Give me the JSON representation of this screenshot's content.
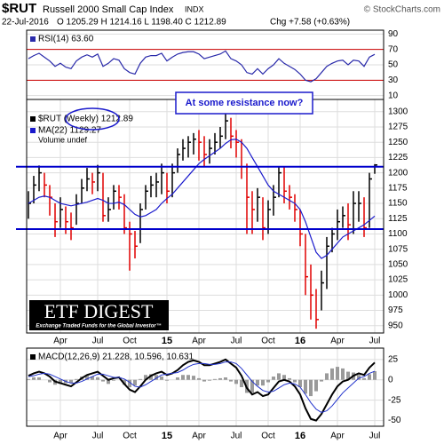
{
  "header": {
    "symbol": "$RUT",
    "name": "Russell 2000 Small Cap Index",
    "exchange": "INDX",
    "source": "© StockCharts.com",
    "date": "22-Jul-2016",
    "quote": "O 1205.29  H 1214.16  L 1198.40  C 1212.89",
    "change": "Chg +7.58 (+0.63%)"
  },
  "annotation": "At some resistance now?",
  "logo": {
    "title": "ETF DIGEST",
    "tagline": "Exchange Traded Funds for the Global Investor™"
  },
  "chart_data": [
    {
      "type": "line",
      "ylim": [
        5,
        95
      ],
      "yticks": [
        10,
        30,
        50,
        70,
        90
      ],
      "grid": true,
      "bands": [
        30,
        70
      ],
      "band_color": "#cc0000",
      "series": [
        {
          "name": "RSI(14) 63.60",
          "color": "#2a2aaa",
          "values": [
            58,
            62,
            65,
            60,
            55,
            48,
            52,
            47,
            45,
            55,
            60,
            63,
            60,
            64,
            48,
            52,
            58,
            56,
            45,
            40,
            38,
            52,
            60,
            62,
            62,
            65,
            55,
            60,
            64,
            66,
            67,
            67,
            64,
            58,
            60,
            62,
            64,
            68,
            58,
            55,
            50,
            40,
            38,
            45,
            38,
            45,
            50,
            58,
            52,
            48,
            44,
            38,
            30,
            28,
            32,
            40,
            48,
            52,
            55,
            56,
            50,
            56,
            55,
            48,
            60,
            63.6
          ]
        }
      ]
    },
    {
      "type": "ohlc",
      "ylim": [
        938,
        1320
      ],
      "yticks": [
        950,
        975,
        1000,
        1025,
        1050,
        1075,
        1100,
        1125,
        1150,
        1175,
        1200,
        1225,
        1250,
        1275,
        1300
      ],
      "grid": true,
      "volume_label": "Volume undef",
      "hlines": [
        1210,
        1108
      ],
      "hline_color": "#0000cc",
      "categories": [
        null,
        null,
        null,
        null,
        null,
        null,
        "Apr",
        null,
        null,
        null,
        null,
        null,
        null,
        "Jul",
        null,
        null,
        null,
        null,
        null,
        "Oct",
        null,
        null,
        null,
        null,
        null,
        null,
        "15",
        null,
        null,
        null,
        null,
        null,
        "Apr",
        null,
        null,
        null,
        null,
        null,
        null,
        "Jul",
        null,
        null,
        null,
        null,
        null,
        "Oct",
        null,
        null,
        null,
        null,
        null,
        "16",
        null,
        null,
        null,
        null,
        null,
        null,
        "Apr",
        null,
        null,
        null,
        null,
        null,
        null,
        "Jul"
      ],
      "series": [
        {
          "name": "$RUT (Weekly) 1212.89",
          "type": "ohlc",
          "up_color": "#000000",
          "down_color": "#e00000",
          "high": [
            1170,
            1195,
            1212,
            1200,
            1180,
            1150,
            1160,
            1145,
            1135,
            1165,
            1190,
            1208,
            1200,
            1213,
            1200,
            1160,
            1180,
            1180,
            1165,
            1120,
            1105,
            1150,
            1180,
            1195,
            1200,
            1215,
            1200,
            1215,
            1240,
            1255,
            1260,
            1265,
            1270,
            1260,
            1255,
            1265,
            1275,
            1296,
            1290,
            1270,
            1255,
            1215,
            1170,
            1175,
            1160,
            1155,
            1180,
            1210,
            1210,
            1180,
            1165,
            1140,
            1100,
            1050,
            1010,
            1040,
            1095,
            1110,
            1140,
            1145,
            1150,
            1170,
            1170,
            1160,
            1200,
            1214.16
          ],
          "low": [
            1125,
            1150,
            1170,
            1160,
            1130,
            1095,
            1110,
            1100,
            1090,
            1115,
            1150,
            1170,
            1165,
            1170,
            1120,
            1120,
            1140,
            1140,
            1100,
            1040,
            1060,
            1085,
            1140,
            1160,
            1160,
            1165,
            1150,
            1160,
            1200,
            1220,
            1225,
            1230,
            1220,
            1210,
            1215,
            1230,
            1240,
            1255,
            1240,
            1225,
            1190,
            1100,
            1100,
            1120,
            1090,
            1100,
            1130,
            1160,
            1150,
            1140,
            1120,
            1080,
            1000,
            960,
            945,
            975,
            1010,
            1070,
            1090,
            1110,
            1090,
            1100,
            1120,
            1095,
            1110,
            1198.4
          ],
          "close": [
            1150,
            1180,
            1200,
            1180,
            1160,
            1120,
            1140,
            1120,
            1110,
            1150,
            1175,
            1190,
            1185,
            1200,
            1130,
            1140,
            1170,
            1160,
            1110,
            1100,
            1080,
            1140,
            1170,
            1180,
            1185,
            1200,
            1170,
            1200,
            1230,
            1240,
            1250,
            1255,
            1250,
            1230,
            1240,
            1250,
            1260,
            1285,
            1260,
            1250,
            1210,
            1160,
            1140,
            1160,
            1110,
            1140,
            1160,
            1200,
            1170,
            1160,
            1140,
            1100,
            1030,
            1000,
            960,
            1020,
            1080,
            1100,
            1120,
            1130,
            1115,
            1150,
            1150,
            1110,
            1190,
            1212.89
          ]
        },
        {
          "name": "MA(22) 1129.27",
          "type": "line",
          "color": "#1a1acc",
          "values": [
            1150,
            1155,
            1160,
            1162,
            1160,
            1155,
            1150,
            1148,
            1146,
            1148,
            1150,
            1152,
            1155,
            1158,
            1155,
            1150,
            1150,
            1152,
            1148,
            1140,
            1132,
            1128,
            1130,
            1135,
            1140,
            1150,
            1158,
            1165,
            1175,
            1185,
            1195,
            1205,
            1215,
            1222,
            1228,
            1234,
            1240,
            1248,
            1254,
            1255,
            1250,
            1240,
            1225,
            1210,
            1195,
            1180,
            1170,
            1165,
            1160,
            1155,
            1150,
            1140,
            1120,
            1095,
            1070,
            1060,
            1065,
            1075,
            1085,
            1095,
            1100,
            1105,
            1110,
            1115,
            1122,
            1129.27
          ]
        }
      ]
    },
    {
      "type": "line",
      "title": "MACD(12,26,9) 21.228, 10.596, 10.631",
      "ylim": [
        -57,
        39
      ],
      "yticks": [
        -50,
        -25,
        0,
        25
      ],
      "grid": true,
      "categories": [
        null,
        null,
        null,
        null,
        null,
        null,
        "Apr",
        null,
        null,
        null,
        null,
        null,
        null,
        "Jul",
        null,
        null,
        null,
        null,
        null,
        "Oct",
        null,
        null,
        null,
        null,
        null,
        null,
        "15",
        null,
        null,
        null,
        null,
        null,
        "Apr",
        null,
        null,
        null,
        null,
        null,
        null,
        "Jul",
        null,
        null,
        null,
        null,
        null,
        "Oct",
        null,
        null,
        null,
        null,
        null,
        "16",
        null,
        null,
        null,
        null,
        null,
        null,
        "Apr",
        null,
        null,
        null,
        null,
        null,
        null,
        "Jul"
      ],
      "series": [
        {
          "type": "bar",
          "color": "#9a9a9a",
          "values": [
            1,
            3,
            3,
            0,
            -3,
            -6,
            -5,
            -4,
            -4,
            1,
            4,
            5,
            4,
            3,
            -2,
            -5,
            -1,
            0,
            -6,
            -9,
            -7,
            1,
            6,
            7,
            6,
            4,
            -1,
            0,
            3,
            6,
            6,
            5,
            2,
            -2,
            -1,
            1,
            2,
            3,
            -2,
            -5,
            -9,
            -16,
            -16,
            -7,
            -7,
            -3,
            4,
            8,
            6,
            2,
            -3,
            -9,
            -17,
            -20,
            -14,
            -2,
            8,
            14,
            16,
            14,
            10,
            9,
            6,
            2,
            7,
            10.631
          ]
        },
        {
          "type": "line",
          "color": "#000000",
          "width": 2,
          "values": [
            5,
            8,
            10,
            8,
            4,
            -2,
            -4,
            -6,
            -8,
            -3,
            2,
            6,
            8,
            10,
            5,
            0,
            2,
            3,
            -5,
            -12,
            -15,
            -8,
            0,
            5,
            8,
            10,
            6,
            8,
            12,
            18,
            22,
            24,
            22,
            18,
            18,
            20,
            22,
            25,
            20,
            15,
            5,
            -10,
            -18,
            -15,
            -20,
            -18,
            -10,
            -2,
            0,
            -2,
            -8,
            -18,
            -35,
            -48,
            -50,
            -42,
            -30,
            -18,
            -8,
            -2,
            0,
            5,
            8,
            6,
            15,
            21.228
          ]
        },
        {
          "type": "line",
          "color": "#2233cc",
          "width": 1,
          "values": [
            4,
            5,
            7,
            8,
            7,
            4,
            1,
            -2,
            -4,
            -4,
            -2,
            1,
            4,
            7,
            7,
            5,
            3,
            3,
            1,
            -3,
            -8,
            -9,
            -6,
            -2,
            2,
            6,
            7,
            8,
            9,
            12,
            16,
            19,
            20,
            20,
            19,
            19,
            20,
            22,
            22,
            20,
            14,
            6,
            -2,
            -8,
            -13,
            -15,
            -14,
            -10,
            -6,
            -4,
            -5,
            -9,
            -18,
            -28,
            -36,
            -40,
            -38,
            -32,
            -24,
            -16,
            -10,
            -4,
            2,
            4,
            8,
            10.596
          ]
        }
      ]
    }
  ]
}
